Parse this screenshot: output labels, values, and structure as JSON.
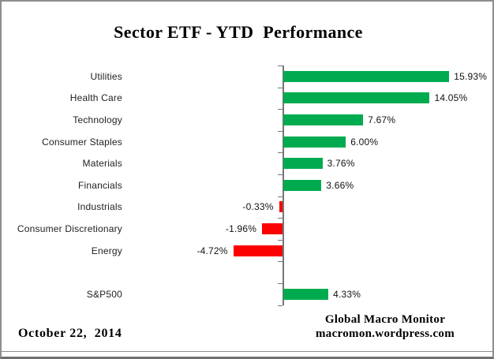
{
  "chart_data": {
    "type": "bar",
    "orientation": "horizontal",
    "title": "Sector ETF - YTD  Performance",
    "categories": [
      "Utilities",
      "Health Care",
      "Technology",
      "Consumer Staples",
      "Materials",
      "Financials",
      "Industrials",
      "Consumer Discretionary",
      "Energy",
      "",
      "S&P500"
    ],
    "values": [
      15.93,
      14.05,
      7.67,
      6.0,
      3.76,
      3.66,
      -0.33,
      -1.96,
      -4.72,
      null,
      4.33
    ],
    "value_labels": [
      "15.93%",
      "14.05%",
      "7.67%",
      "6.00%",
      "3.76%",
      "3.66%",
      "-0.33%",
      "-1.96%",
      "-4.72%",
      null,
      "4.33%"
    ],
    "positive_color": "#00AB50",
    "negative_color": "#FB0000",
    "axis_color": "#767676",
    "grid": false,
    "value_axis_visible": false,
    "legend": false
  },
  "footer": {
    "date": "October 22,  2014",
    "attribution_line1": "Global Macro Monitor",
    "attribution_line2": "macromon.wordpress.com"
  }
}
